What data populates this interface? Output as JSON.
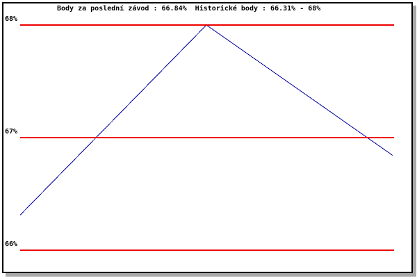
{
  "frame": {
    "border_color": "#000000",
    "shadow_color": "#a9a9a9",
    "background": "#ffffff"
  },
  "chart_data": {
    "type": "line",
    "title": "Body za poslední závod : 66.84%  Historické body : 66.31% - 68%",
    "last_race_points": "66.84%",
    "historic_points_range": "66.31% - 68%",
    "x": [
      0,
      1,
      2
    ],
    "series": [
      {
        "name": "body",
        "color": "#0000a0",
        "values": [
          66.31,
          68.0,
          66.84
        ]
      }
    ],
    "gridlines": [
      {
        "value": 68,
        "label": "68%"
      },
      {
        "value": 67,
        "label": "67%"
      },
      {
        "value": 66,
        "label": "66%"
      }
    ],
    "gridline_color": "#ee0000",
    "xlabel": "",
    "ylabel": "",
    "ylim": [
      65.8,
      68.05
    ],
    "legend": "none",
    "grid": "horizontal-red-lines"
  }
}
